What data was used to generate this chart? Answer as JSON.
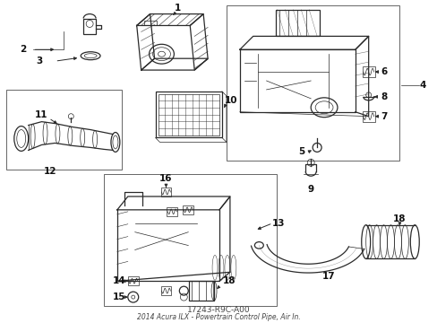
{
  "title": "2014 Acura ILX - Powertrain Control Pipe, Air In.",
  "part_number": "17243-R9C-A00",
  "bg_color": "#ffffff",
  "line_color": "#2a2a2a",
  "label_color": "#111111",
  "lw_main": 0.9,
  "lw_thin": 0.5,
  "lfs": 7.5,
  "lfs_sm": 6.5
}
